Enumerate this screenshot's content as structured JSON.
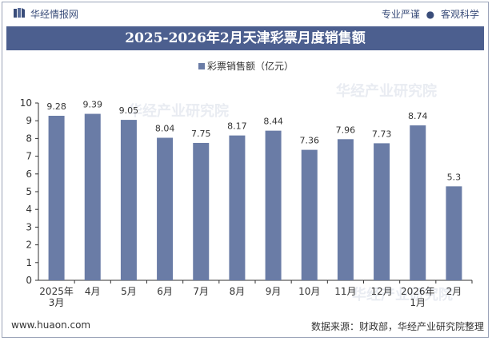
{
  "header": {
    "brand": "华经情报网",
    "tag_left": "专业严谨",
    "tag_sep": "●",
    "tag_right": "客观科学"
  },
  "title": "2025-2026年2月天津彩票月度销售额",
  "legend": {
    "label": "彩票销售额（亿元）"
  },
  "chart_data": {
    "type": "bar",
    "categories": [
      "2025年\n3月",
      "4月",
      "5月",
      "6月",
      "7月",
      "8月",
      "9月",
      "10月",
      "11月",
      "12月",
      "2026年\n1月",
      "2月"
    ],
    "series": [
      {
        "name": "彩票销售额（亿元）",
        "values": [
          9.28,
          9.39,
          9.05,
          8.04,
          7.75,
          8.17,
          8.44,
          7.36,
          7.96,
          7.73,
          8.74,
          5.3
        ]
      }
    ],
    "value_labels": [
      "9.28",
      "9.39",
      "9.05",
      "8.04",
      "7.75",
      "8.17",
      "8.44",
      "7.36",
      "7.96",
      "7.73",
      "8.74",
      "5.3"
    ],
    "ylim": [
      0,
      10
    ],
    "yticks": [
      0,
      1,
      2,
      3,
      4,
      5,
      6,
      7,
      8,
      9,
      10
    ],
    "bar_color": "#6a7ca6",
    "grid": false,
    "legend_position": "top-center"
  },
  "watermark": {
    "text": "华经产业研究院"
  },
  "footer": {
    "website": "www.huaon.com",
    "source": "数据来源：财政部，华经产业研究院整理"
  },
  "colors": {
    "title_bg": "#4c5f8f",
    "bar": "#6a7ca6",
    "brand": "#3a4d7a"
  }
}
